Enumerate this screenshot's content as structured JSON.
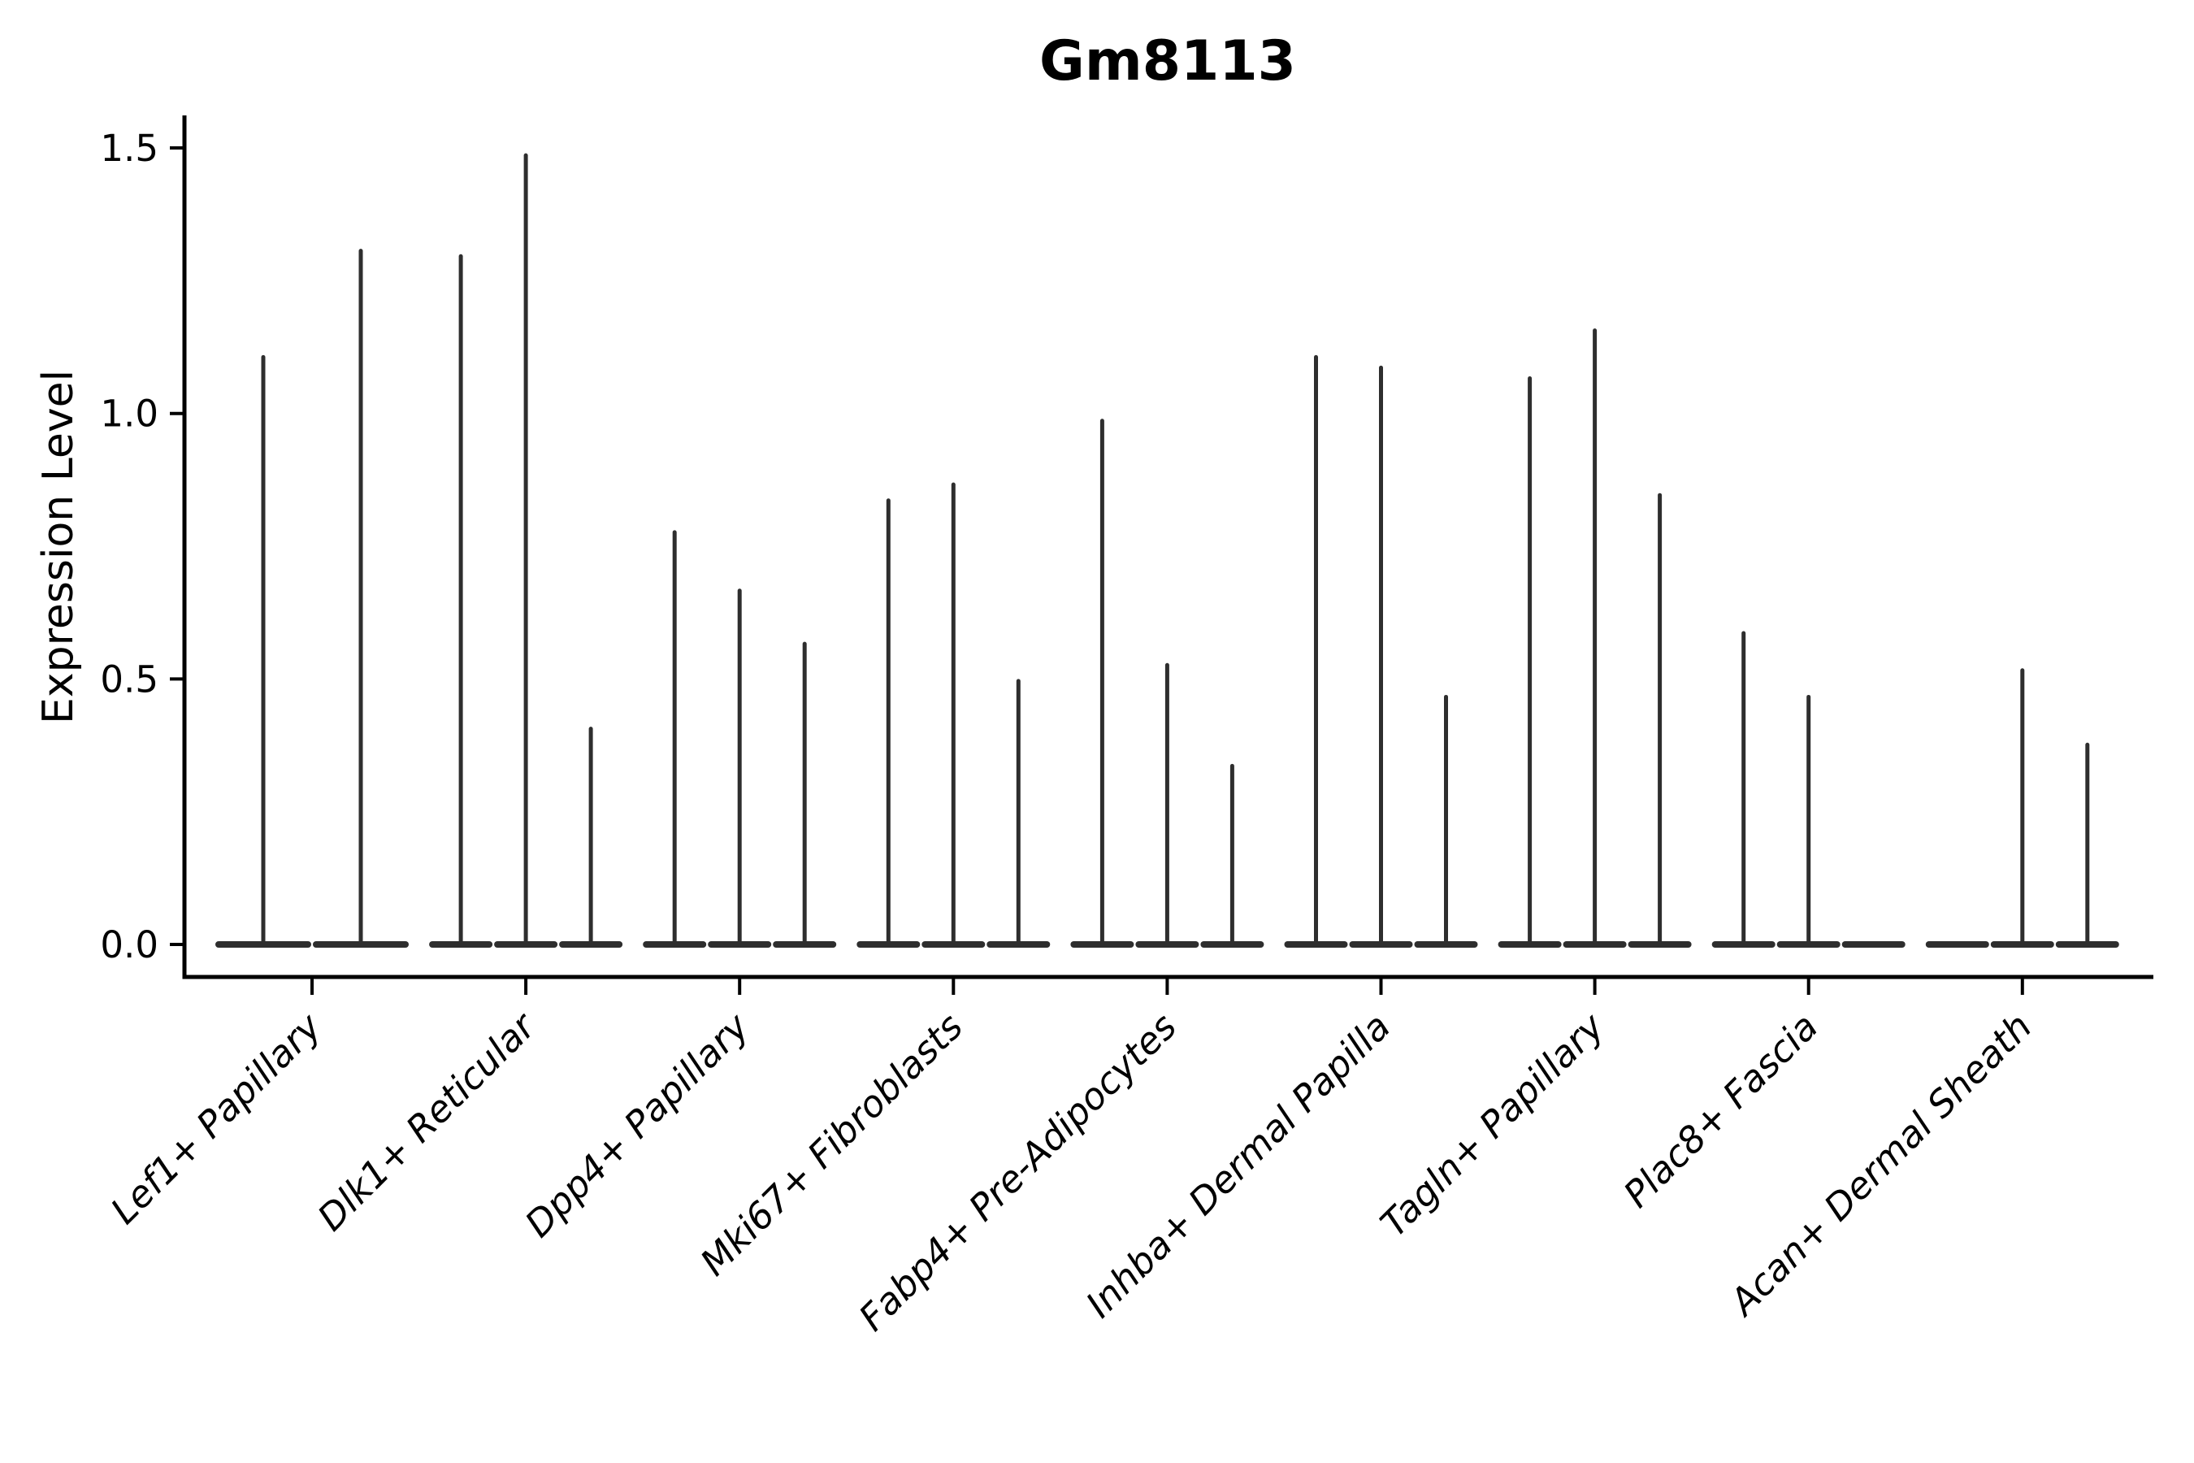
{
  "figure": {
    "title": "Gm8113",
    "background_color": "#ffffff"
  },
  "chart_data": {
    "type": "violin",
    "title": "Gm8113",
    "xlabel": "",
    "ylabel": "Expression Level",
    "ylim": [
      0,
      1.59
    ],
    "y_ticks": [
      0.0,
      0.5,
      1.0,
      1.5
    ],
    "y_tick_labels": [
      "0.0",
      "0.5",
      "1.0",
      "1.5"
    ],
    "grid": false,
    "legend": false,
    "categories": [
      "Lef1+ Papillary",
      "Dlk1+ Reticular",
      "Dpp4+ Papillary",
      "Mki67+ Fibroblasts",
      "Fabp4+ Pre-Adipocytes",
      "Inhba+ Dermal Papilla",
      "Tagln+ Papillary",
      "Plac8+ Fascia",
      "Acan+ Dermal Sheath"
    ],
    "groups": [
      {
        "category": "Lef1+ Papillary",
        "violin_maxima": [
          1.11,
          1.31
        ]
      },
      {
        "category": "Dlk1+ Reticular",
        "violin_maxima": [
          1.3,
          1.49,
          0.41
        ]
      },
      {
        "category": "Dpp4+ Papillary",
        "violin_maxima": [
          0.78,
          0.67,
          0.57
        ]
      },
      {
        "category": "Mki67+ Fibroblasts",
        "violin_maxima": [
          0.84,
          0.87,
          0.5
        ]
      },
      {
        "category": "Fabp4+ Pre-Adipocytes",
        "violin_maxima": [
          0.99,
          0.53,
          0.34
        ]
      },
      {
        "category": "Inhba+ Dermal Papilla",
        "violin_maxima": [
          1.11,
          1.09,
          0.47
        ]
      },
      {
        "category": "Tagln+ Papillary",
        "violin_maxima": [
          1.07,
          1.16,
          0.85
        ]
      },
      {
        "category": "Plac8+ Fascia",
        "violin_maxima": [
          0.59,
          0.47,
          0.0
        ]
      },
      {
        "category": "Acan+ Dermal Sheath",
        "violin_maxima": [
          0.0,
          0.52,
          0.38
        ]
      }
    ],
    "style": {
      "violin_color": "#2e2e2e",
      "axis_color": "#000000",
      "violins_per_group_max": 3
    }
  }
}
